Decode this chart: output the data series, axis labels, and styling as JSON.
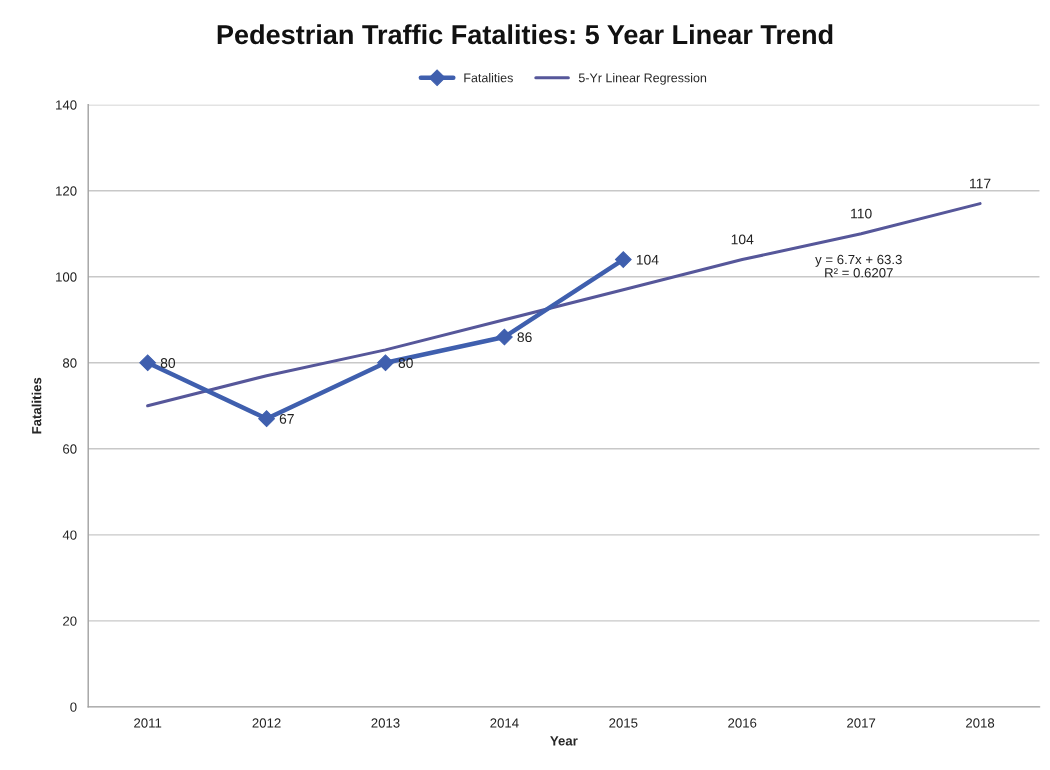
{
  "chart_data": {
    "type": "line",
    "title": "Pedestrian Traffic Fatalities: 5 Year Linear Trend",
    "xlabel": "Year",
    "ylabel": "Fatalities",
    "categories": [
      "2011",
      "2012",
      "2013",
      "2014",
      "2015",
      "2016",
      "2017",
      "2018"
    ],
    "series": [
      {
        "name": "Fatalities",
        "color": "#3f5fae",
        "marker": "diamond",
        "values": [
          80,
          67,
          80,
          86,
          104,
          null,
          null,
          null
        ],
        "value_labels": [
          "80",
          "67",
          "80",
          "86",
          "104",
          null,
          null,
          null
        ]
      },
      {
        "name": "5-Yr Linear Regression",
        "color": "#56579a",
        "values": [
          70,
          77,
          83,
          90,
          97,
          104,
          110,
          117
        ],
        "value_labels": [
          null,
          null,
          null,
          null,
          null,
          "104",
          "110",
          "117"
        ]
      }
    ],
    "annotations": [
      "y = 6.7x + 63.3\nR² = 0.6207"
    ],
    "ylim": [
      0,
      140
    ],
    "yticks": [
      0,
      20,
      40,
      60,
      80,
      100,
      120,
      140
    ],
    "grid": "y",
    "legend": "top",
    "line_style": "solid"
  }
}
